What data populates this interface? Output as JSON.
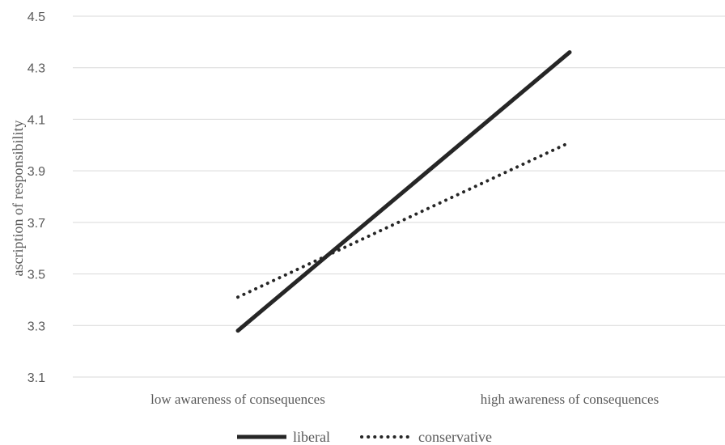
{
  "chart_data": {
    "type": "line",
    "categories": [
      "low awareness of consequences",
      "high awareness of consequences"
    ],
    "series": [
      {
        "name": "liberal",
        "values": [
          3.28,
          4.36
        ],
        "style": "solid",
        "color": "#262626"
      },
      {
        "name": "conservative",
        "values": [
          3.41,
          4.01
        ],
        "style": "dotted",
        "color": "#262626"
      }
    ],
    "ylabel": "ascription of responsibility",
    "ylim": [
      3.1,
      4.5
    ],
    "yticks": [
      "3.1",
      "3.3",
      "3.5",
      "3.7",
      "3.9",
      "4.1",
      "4.3",
      "4.5"
    ],
    "grid": true,
    "legend_position": "bottom"
  }
}
